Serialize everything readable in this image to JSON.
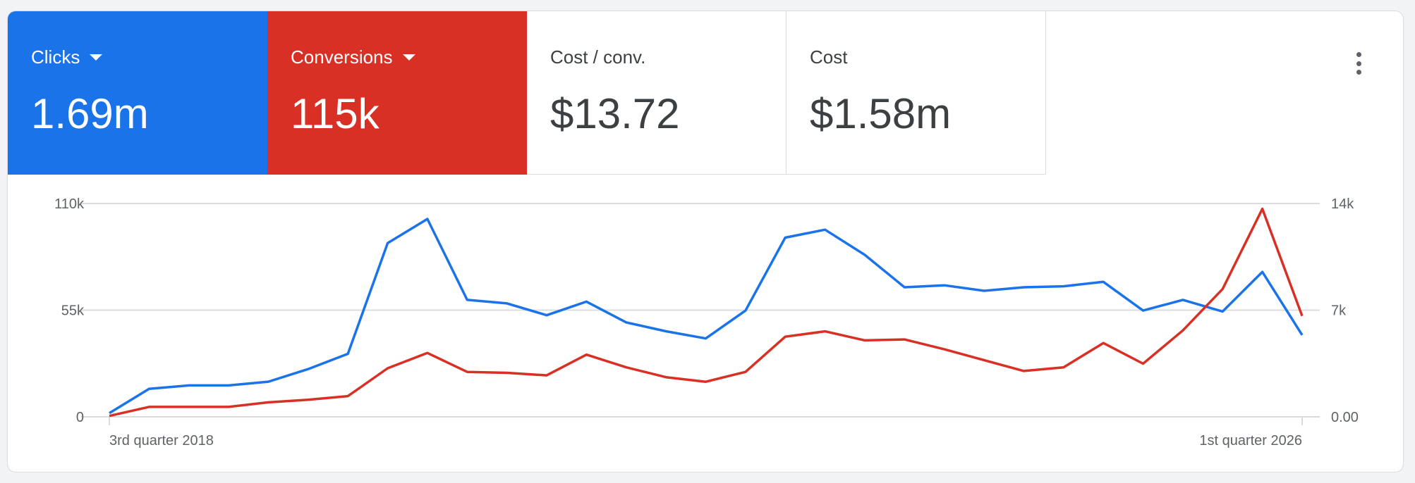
{
  "tiles": [
    {
      "label": "Clicks",
      "value": "1.69m",
      "color": "#1a73e8",
      "dropdown": true
    },
    {
      "label": "Conversions",
      "value": "115k",
      "color": "#d93025",
      "dropdown": true
    },
    {
      "label": "Cost / conv.",
      "value": "$13.72"
    },
    {
      "label": "Cost",
      "value": "$1.58m"
    }
  ],
  "more_icon": "more-vert-icon",
  "chart_data": {
    "type": "line",
    "x_start_label": "3rd quarter 2018",
    "x_end_label": "1st quarter 2026",
    "x": [
      "2018 Q3",
      "2018 Q4",
      "2019 Q1",
      "2019 Q2",
      "2019 Q3",
      "2019 Q4",
      "2020 Q1",
      "2020 Q2",
      "2020 Q3",
      "2020 Q4",
      "2021 Q1",
      "2021 Q2",
      "2021 Q3",
      "2021 Q4",
      "2022 Q1",
      "2022 Q2",
      "2022 Q3",
      "2022 Q4",
      "2023 Q1",
      "2023 Q2",
      "2023 Q3",
      "2023 Q4",
      "2024 Q1",
      "2024 Q2",
      "2024 Q3",
      "2024 Q4",
      "2025 Q1",
      "2025 Q2",
      "2025 Q3",
      "2025 Q4",
      "2026 Q1"
    ],
    "left_axis": {
      "ticks": [
        "0",
        "55k",
        "110k"
      ],
      "range": [
        0,
        110000
      ]
    },
    "right_axis": {
      "ticks": [
        "0.00",
        "7k",
        "14k"
      ],
      "range": [
        0,
        14000
      ]
    },
    "grid": true,
    "series": [
      {
        "name": "Clicks",
        "axis": "left",
        "color": "#1a73e8",
        "values": [
          1900,
          14400,
          16200,
          16200,
          18100,
          24600,
          32500,
          89600,
          102000,
          60300,
          58500,
          52400,
          59400,
          48700,
          44100,
          40400,
          54800,
          92400,
          96500,
          83500,
          66800,
          67800,
          65000,
          66800,
          67300,
          69600,
          54800,
          60300,
          54300,
          74700,
          42200
        ]
      },
      {
        "name": "Conversions",
        "axis": "right",
        "color": "#d93025",
        "values": [
          60,
          650,
          650,
          650,
          950,
          1120,
          1360,
          3190,
          4190,
          2950,
          2890,
          2720,
          4080,
          3250,
          2600,
          2300,
          2950,
          5260,
          5610,
          5020,
          5080,
          4430,
          3720,
          3010,
          3250,
          4840,
          3490,
          5670,
          8390,
          13650,
          6620
        ]
      }
    ]
  }
}
